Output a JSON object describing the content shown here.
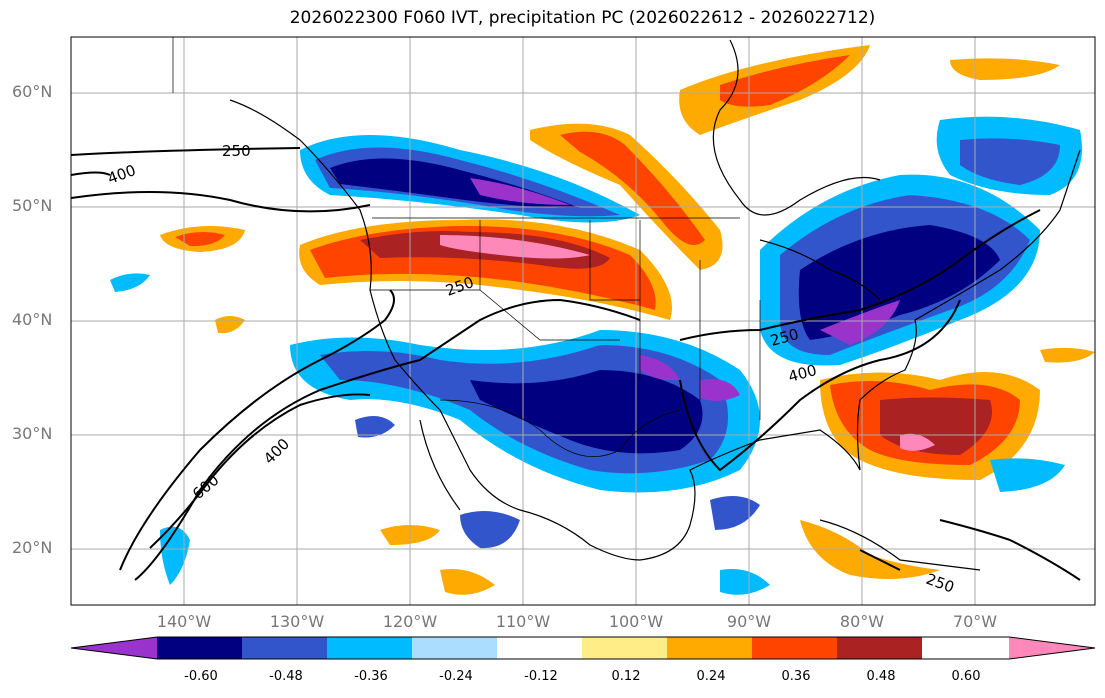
{
  "title": "2026022300 F060 IVT, precipitation PC (2026022612 - 2026022712)",
  "lat_labels": [
    "20°N",
    "30°N",
    "40°N",
    "50°N",
    "60°N"
  ],
  "lon_labels": [
    "140°W",
    "130°W",
    "120°W",
    "110°W",
    "100°W",
    "90°W",
    "80°W",
    "70°W"
  ],
  "contour_labels": [
    "250",
    "400",
    "250",
    "600",
    "400",
    "400",
    "250",
    "250"
  ],
  "colorbar": {
    "ticks": [
      "-0.60",
      "-0.48",
      "-0.36",
      "-0.24",
      "-0.12",
      "0.12",
      "0.24",
      "0.36",
      "0.48",
      "0.60"
    ],
    "colors": [
      "#9933cc",
      "#000080",
      "#3355cc",
      "#00bbff",
      "#aaddff",
      "#ffffff",
      "#ffee88",
      "#ffaa00",
      "#ff4400",
      "#aa2222",
      "#ff88bb"
    ]
  }
}
